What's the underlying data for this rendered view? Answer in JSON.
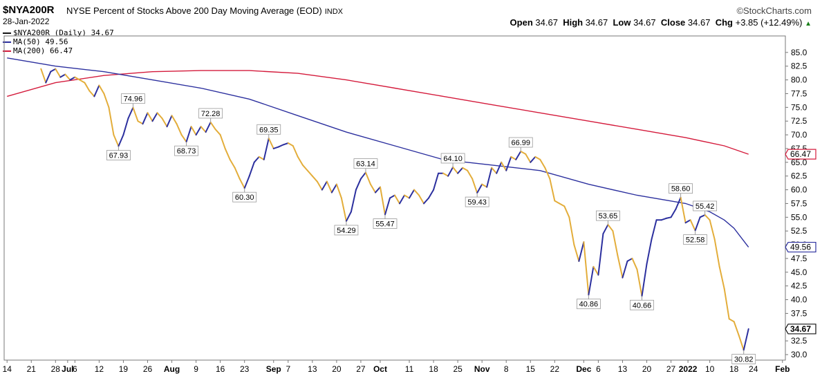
{
  "header": {
    "symbol": "$NYA200R",
    "description": "NYSE Percent of Stocks Above 200 Day Moving Average (EOD)",
    "exchange": "INDX",
    "date": "28-Jan-2022",
    "brand": "©StockCharts.com",
    "open_label": "Open",
    "open": "34.67",
    "high_label": "High",
    "high": "34.67",
    "low_label": "Low",
    "low": "34.67",
    "close_label": "Close",
    "close": "34.67",
    "chg_label": "Chg",
    "chg": "+3.85 (+12.49%)",
    "chg_arrow": "▲"
  },
  "legend": [
    {
      "text": "$NYA200R (Daily) 34.67",
      "color": "#111111"
    },
    {
      "text": "MA(50) 49.56",
      "color": "#2b2f9e"
    },
    {
      "text": "MA(200) 66.47",
      "color": "#d41a3b"
    }
  ],
  "chart_data": {
    "type": "line",
    "ylim": [
      29,
      88
    ],
    "y_ticks": [
      30.0,
      32.5,
      35.0,
      37.5,
      40.0,
      42.5,
      45.0,
      47.5,
      50.0,
      52.5,
      55.0,
      57.5,
      60.0,
      62.5,
      65.0,
      67.5,
      70.0,
      72.5,
      75.0,
      77.5,
      80.0,
      82.5,
      85.0
    ],
    "y_tick_labels": [
      "30.0",
      "32.5",
      "35.0",
      "37.5",
      "40.0",
      "42.5",
      "45.0",
      "47.5",
      "50.0",
      "52.5",
      "55.0",
      "57.5",
      "60.0",
      "62.5",
      "65.0",
      "67.5",
      "70.0",
      "72.5",
      "75.0",
      "77.5",
      "80.0",
      "82.5",
      "85.0"
    ],
    "x_labels": [
      {
        "t": 0,
        "text": "14"
      },
      {
        "t": 5,
        "text": "21"
      },
      {
        "t": 10,
        "text": "28"
      },
      {
        "t": 12.5,
        "text": "Jul",
        "bold": true
      },
      {
        "t": 14,
        "text": "6"
      },
      {
        "t": 19,
        "text": "12"
      },
      {
        "t": 24,
        "text": "19"
      },
      {
        "t": 29,
        "text": "26"
      },
      {
        "t": 34,
        "text": "Aug",
        "bold": true
      },
      {
        "t": 39,
        "text": "9"
      },
      {
        "t": 44,
        "text": "16"
      },
      {
        "t": 49,
        "text": "23"
      },
      {
        "t": 55,
        "text": "Sep",
        "bold": true
      },
      {
        "t": 58,
        "text": "7"
      },
      {
        "t": 63,
        "text": "13"
      },
      {
        "t": 68,
        "text": "20"
      },
      {
        "t": 73,
        "text": "27"
      },
      {
        "t": 77,
        "text": "Oct",
        "bold": true
      },
      {
        "t": 83,
        "text": "11"
      },
      {
        "t": 88,
        "text": "18"
      },
      {
        "t": 93,
        "text": "25"
      },
      {
        "t": 98,
        "text": "Nov",
        "bold": true
      },
      {
        "t": 103,
        "text": "8"
      },
      {
        "t": 108,
        "text": "15"
      },
      {
        "t": 113,
        "text": "22"
      },
      {
        "t": 119,
        "text": "Dec",
        "bold": true
      },
      {
        "t": 122,
        "text": "6"
      },
      {
        "t": 127,
        "text": "13"
      },
      {
        "t": 132,
        "text": "20"
      },
      {
        "t": 137,
        "text": "27"
      },
      {
        "t": 140.5,
        "text": "2022",
        "bold": true
      },
      {
        "t": 145,
        "text": "10"
      },
      {
        "t": 150,
        "text": "18"
      },
      {
        "t": 154,
        "text": "24"
      },
      {
        "t": 160,
        "text": "Feb",
        "bold": true
      }
    ],
    "series": [
      {
        "name": "$NYA200R (Daily)",
        "color_up": "#2b2f9e",
        "color_down": "#e3ad3a",
        "points": [
          [
            7,
            82.0
          ],
          [
            8,
            79.5
          ],
          [
            9,
            81.5
          ],
          [
            10,
            82.0
          ],
          [
            11,
            80.5
          ],
          [
            12,
            81.0
          ],
          [
            13,
            80.0
          ],
          [
            14,
            80.5
          ],
          [
            15,
            80.0
          ],
          [
            16,
            79.5
          ],
          [
            17,
            78.0
          ],
          [
            18,
            77.0
          ],
          [
            19,
            79.0
          ],
          [
            20,
            77.5
          ],
          [
            21,
            75.0
          ],
          [
            22,
            70.0
          ],
          [
            23,
            67.93
          ],
          [
            24,
            70.0
          ],
          [
            25,
            73.0
          ],
          [
            26,
            74.96
          ],
          [
            27,
            72.5
          ],
          [
            28,
            72.0
          ],
          [
            29,
            74.0
          ],
          [
            30,
            72.5
          ],
          [
            31,
            74.0
          ],
          [
            32,
            73.0
          ],
          [
            33,
            71.5
          ],
          [
            34,
            73.5
          ],
          [
            35,
            72.0
          ],
          [
            36,
            70.0
          ],
          [
            37,
            68.73
          ],
          [
            38,
            71.5
          ],
          [
            39,
            70.0
          ],
          [
            40,
            71.5
          ],
          [
            41,
            70.5
          ],
          [
            42,
            72.28
          ],
          [
            43,
            71.0
          ],
          [
            44,
            70.0
          ],
          [
            45,
            67.5
          ],
          [
            46,
            65.5
          ],
          [
            47,
            64.0
          ],
          [
            48,
            62.0
          ],
          [
            49,
            60.3
          ],
          [
            50,
            62.5
          ],
          [
            51,
            65.0
          ],
          [
            52,
            66.0
          ],
          [
            53,
            65.5
          ],
          [
            54,
            69.35
          ],
          [
            55,
            67.5
          ],
          [
            56,
            67.8
          ],
          [
            57,
            68.2
          ],
          [
            58,
            68.5
          ],
          [
            59,
            68.0
          ],
          [
            60,
            66.0
          ],
          [
            61,
            64.5
          ],
          [
            62,
            63.5
          ],
          [
            63,
            62.5
          ],
          [
            64,
            61.5
          ],
          [
            65,
            60.0
          ],
          [
            66,
            61.5
          ],
          [
            67,
            59.5
          ],
          [
            68,
            61.0
          ],
          [
            69,
            58.5
          ],
          [
            70,
            54.29
          ],
          [
            71,
            56.0
          ],
          [
            72,
            60.0
          ],
          [
            73,
            62.0
          ],
          [
            74,
            63.14
          ],
          [
            75,
            61.0
          ],
          [
            76,
            59.5
          ],
          [
            77,
            60.5
          ],
          [
            78,
            55.47
          ],
          [
            79,
            58.5
          ],
          [
            80,
            59.0
          ],
          [
            81,
            57.5
          ],
          [
            82,
            59.0
          ],
          [
            83,
            58.5
          ],
          [
            84,
            60.0
          ],
          [
            85,
            59.0
          ],
          [
            86,
            57.5
          ],
          [
            87,
            58.5
          ],
          [
            88,
            60.0
          ],
          [
            89,
            63.0
          ],
          [
            90,
            63.0
          ],
          [
            91,
            62.5
          ],
          [
            92,
            64.1
          ],
          [
            93,
            63.0
          ],
          [
            94,
            64.0
          ],
          [
            95,
            63.5
          ],
          [
            96,
            62.0
          ],
          [
            97,
            59.43
          ],
          [
            98,
            61.0
          ],
          [
            99,
            60.5
          ],
          [
            100,
            64.0
          ],
          [
            101,
            63.0
          ],
          [
            102,
            65.0
          ],
          [
            103,
            63.5
          ],
          [
            104,
            66.0
          ],
          [
            105,
            65.5
          ],
          [
            106,
            66.99
          ],
          [
            107,
            66.5
          ],
          [
            108,
            65.0
          ],
          [
            109,
            66.0
          ],
          [
            110,
            65.5
          ],
          [
            111,
            64.0
          ],
          [
            112,
            62.0
          ],
          [
            113,
            58.0
          ],
          [
            114,
            57.5
          ],
          [
            115,
            57.0
          ],
          [
            116,
            55.0
          ],
          [
            117,
            50.0
          ],
          [
            118,
            47.0
          ],
          [
            119,
            50.5
          ],
          [
            120,
            40.86
          ],
          [
            121,
            46.0
          ],
          [
            122,
            44.5
          ],
          [
            123,
            52.0
          ],
          [
            124,
            53.65
          ],
          [
            125,
            52.5
          ],
          [
            126,
            48.0
          ],
          [
            127,
            44.0
          ],
          [
            128,
            47.0
          ],
          [
            129,
            47.5
          ],
          [
            130,
            45.5
          ],
          [
            131,
            40.66
          ],
          [
            132,
            46.5
          ],
          [
            133,
            51.0
          ],
          [
            134,
            54.5
          ],
          [
            135,
            54.5
          ],
          [
            136,
            54.8
          ],
          [
            137,
            55.0
          ],
          [
            138,
            56.5
          ],
          [
            139,
            58.6
          ],
          [
            140,
            54.0
          ],
          [
            141,
            54.5
          ],
          [
            142,
            52.58
          ],
          [
            143,
            55.0
          ],
          [
            144,
            55.42
          ],
          [
            145,
            54.5
          ],
          [
            146,
            51.0
          ],
          [
            147,
            46.0
          ],
          [
            148,
            42.0
          ],
          [
            149,
            36.5
          ],
          [
            150,
            36.0
          ],
          [
            151,
            33.5
          ],
          [
            152,
            30.82
          ],
          [
            153,
            34.67
          ]
        ],
        "labels": [
          {
            "t": 23,
            "v": 67.93,
            "text": "67.93",
            "pos": "below"
          },
          {
            "t": 26,
            "v": 74.96,
            "text": "74.96",
            "pos": "above"
          },
          {
            "t": 37,
            "v": 68.73,
            "text": "68.73",
            "pos": "below"
          },
          {
            "t": 42,
            "v": 72.28,
            "text": "72.28",
            "pos": "above"
          },
          {
            "t": 49,
            "v": 60.3,
            "text": "60.30",
            "pos": "below"
          },
          {
            "t": 54,
            "v": 69.35,
            "text": "69.35",
            "pos": "above"
          },
          {
            "t": 70,
            "v": 54.29,
            "text": "54.29",
            "pos": "below"
          },
          {
            "t": 74,
            "v": 63.14,
            "text": "63.14",
            "pos": "above"
          },
          {
            "t": 78,
            "v": 55.47,
            "text": "55.47",
            "pos": "below"
          },
          {
            "t": 92,
            "v": 64.1,
            "text": "64.10",
            "pos": "above"
          },
          {
            "t": 97,
            "v": 59.43,
            "text": "59.43",
            "pos": "below"
          },
          {
            "t": 106,
            "v": 66.99,
            "text": "66.99",
            "pos": "above"
          },
          {
            "t": 120,
            "v": 40.86,
            "text": "40.86",
            "pos": "below"
          },
          {
            "t": 124,
            "v": 53.65,
            "text": "53.65",
            "pos": "above"
          },
          {
            "t": 131,
            "v": 40.66,
            "text": "40.66",
            "pos": "below"
          },
          {
            "t": 139,
            "v": 58.6,
            "text": "58.60",
            "pos": "above"
          },
          {
            "t": 142,
            "v": 52.58,
            "text": "52.58",
            "pos": "below"
          },
          {
            "t": 144,
            "v": 55.42,
            "text": "55.42",
            "pos": "above"
          },
          {
            "t": 152,
            "v": 30.82,
            "text": "30.82",
            "pos": "below"
          }
        ]
      },
      {
        "name": "MA(50)",
        "color": "#2b2f9e",
        "points": [
          [
            0,
            84.0
          ],
          [
            10,
            82.5
          ],
          [
            20,
            81.5
          ],
          [
            30,
            80.0
          ],
          [
            40,
            78.5
          ],
          [
            50,
            76.5
          ],
          [
            60,
            73.5
          ],
          [
            70,
            70.5
          ],
          [
            80,
            68.0
          ],
          [
            90,
            65.5
          ],
          [
            100,
            64.5
          ],
          [
            110,
            63.5
          ],
          [
            120,
            61.0
          ],
          [
            130,
            59.0
          ],
          [
            140,
            57.5
          ],
          [
            145,
            56.0
          ],
          [
            148,
            54.5
          ],
          [
            150,
            53.0
          ],
          [
            153,
            49.56
          ]
        ]
      },
      {
        "name": "MA(200)",
        "color": "#d41a3b",
        "points": [
          [
            0,
            77.0
          ],
          [
            10,
            79.5
          ],
          [
            20,
            80.8
          ],
          [
            30,
            81.5
          ],
          [
            40,
            81.7
          ],
          [
            50,
            81.7
          ],
          [
            60,
            81.2
          ],
          [
            70,
            80.0
          ],
          [
            80,
            78.5
          ],
          [
            90,
            77.0
          ],
          [
            100,
            75.5
          ],
          [
            110,
            74.0
          ],
          [
            120,
            72.5
          ],
          [
            130,
            71.0
          ],
          [
            140,
            69.5
          ],
          [
            148,
            68.0
          ],
          [
            153,
            66.47
          ]
        ]
      }
    ],
    "right_labels": [
      {
        "v": 66.47,
        "text": "66.47",
        "color": "#d41a3b"
      },
      {
        "v": 49.56,
        "text": "49.56",
        "color": "#2b2f9e"
      },
      {
        "v": 34.67,
        "text": "34.67",
        "color": "#111111"
      }
    ]
  }
}
